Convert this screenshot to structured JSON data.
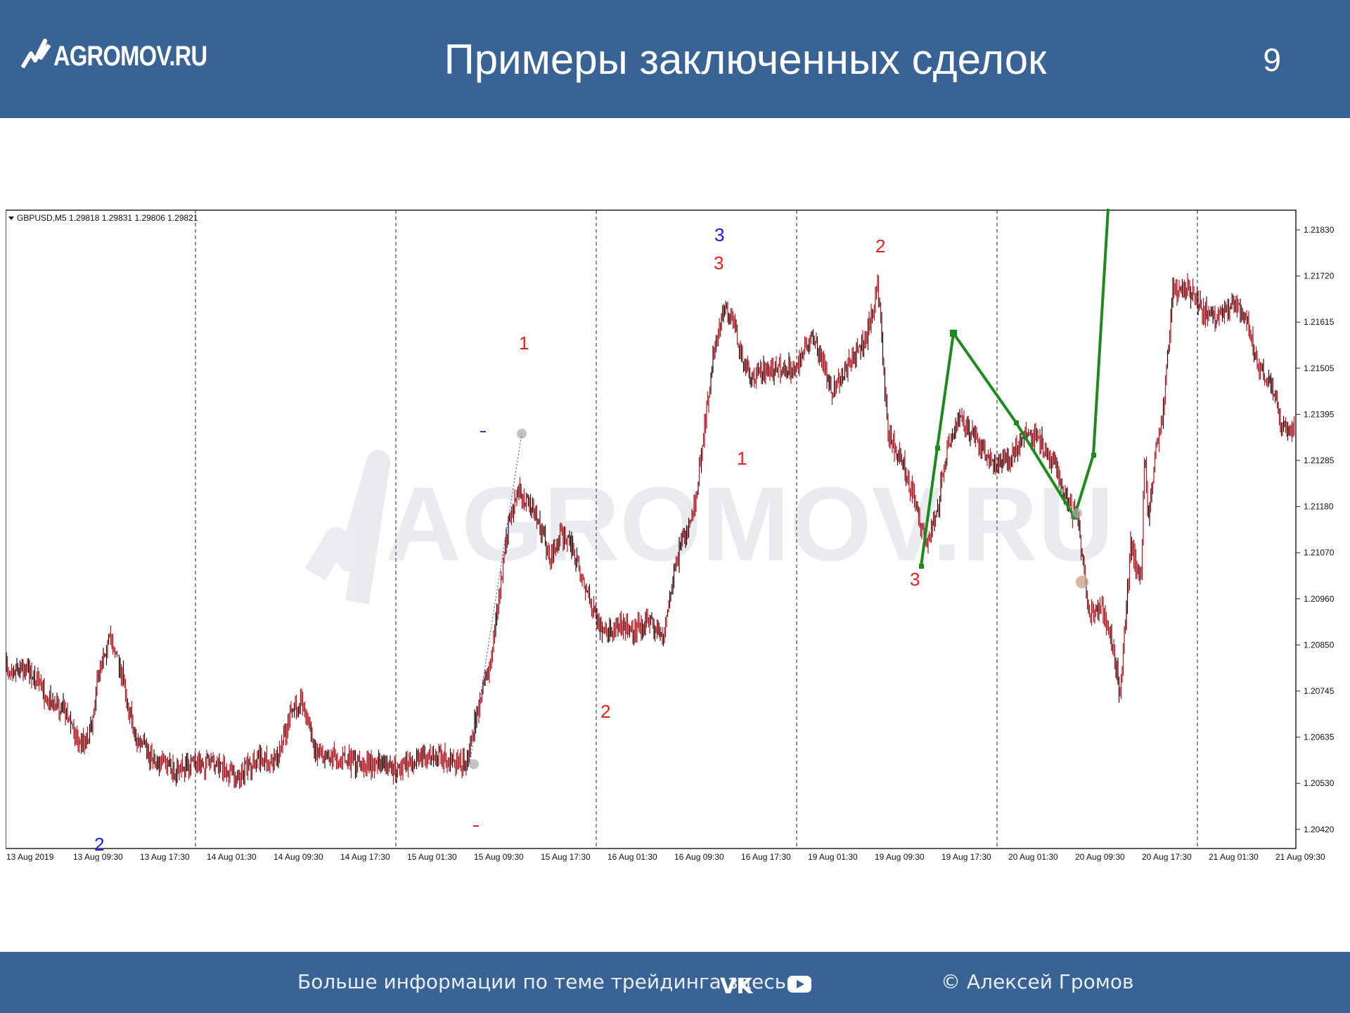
{
  "header": {
    "logo_text": "AGROMOV.RU",
    "title": "Примеры заключенных сделок",
    "page_number": "9",
    "background": "#3a6395"
  },
  "chart": {
    "symbol_info": "GBPUSD,M5  1.29818 1.29831 1.29806 1.29821",
    "watermark": "AGROMOV.RU",
    "price_labels": [
      "1.21830",
      "1.21720",
      "1.21615",
      "1.21505",
      "1.21395",
      "1.21285",
      "1.21180",
      "1.21070",
      "1.20960",
      "1.20850",
      "1.20745",
      "1.20635",
      "1.20530",
      "1.20420"
    ],
    "time_labels": [
      "13 Aug 2019",
      "13 Aug 09:30",
      "13 Aug 17:30",
      "14 Aug 01:30",
      "14 Aug 09:30",
      "14 Aug 17:30",
      "15 Aug 01:30",
      "15 Aug 09:30",
      "15 Aug 17:30",
      "16 Aug 01:30",
      "16 Aug 09:30",
      "16 Aug 17:30",
      "19 Aug 01:30",
      "19 Aug 09:30",
      "19 Aug 17:30",
      "20 Aug 01:30",
      "20 Aug 09:30",
      "20 Aug 17:30",
      "21 Aug 01:30",
      "21 Aug 09:30"
    ],
    "wave_labels": [
      {
        "text": "2",
        "color": "blue"
      },
      {
        "text": "1",
        "color": "red"
      },
      {
        "text": "2",
        "color": "red"
      },
      {
        "text": "3",
        "color": "blue"
      },
      {
        "text": "3",
        "color": "red"
      },
      {
        "text": "1",
        "color": "red"
      },
      {
        "text": "2",
        "color": "red"
      },
      {
        "text": "3",
        "color": "red"
      }
    ],
    "colors": {
      "candles": "#b4141e",
      "candles_dark": "#2a0608",
      "trade_line": "#1c8a1c",
      "wave_red": "#ee1c1c",
      "wave_blue": "#1a1aee"
    }
  },
  "footer": {
    "info_text": "Больше информации по теме трейдинга здесь",
    "vk_label": "vk",
    "youtube_icon": "youtube-icon",
    "copyright": "© Алексей Громов"
  }
}
